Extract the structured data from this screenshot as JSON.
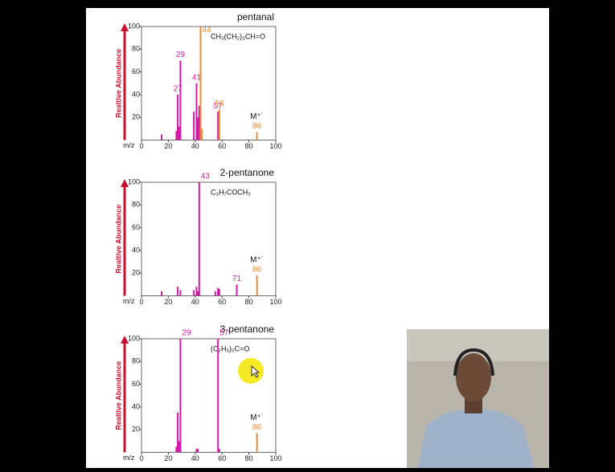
{
  "chart_data": [
    {
      "type": "bar",
      "title": "pentanal",
      "formula": "CH₃(CH₂)₃CH=O",
      "y_label": "Realtive Abundance",
      "x_label": "m/z",
      "ion_label": "M⁺˙",
      "xlim": [
        0,
        100
      ],
      "ylim": [
        0,
        100
      ],
      "xticks": [
        0,
        20,
        40,
        60,
        80,
        100
      ],
      "yticks": [
        20,
        40,
        60,
        80,
        100
      ],
      "series": [
        {
          "color": "#d21aa8",
          "x": [
            15,
            26,
            27,
            28,
            29,
            39,
            41,
            42,
            43,
            57
          ],
          "values": [
            5,
            8,
            40,
            12,
            70,
            25,
            50,
            20,
            30,
            25
          ],
          "labeled": [
            false,
            false,
            true,
            false,
            true,
            false,
            true,
            false,
            false,
            true
          ]
        },
        {
          "color": "#ee8a2e",
          "x": [
            44,
            45,
            58,
            86
          ],
          "values": [
            100,
            10,
            27,
            7
          ],
          "labeled": [
            true,
            false,
            true,
            true
          ]
        }
      ]
    },
    {
      "type": "bar",
      "title": "2-pentanone",
      "formula": "C₃H₇COCH₃",
      "y_label": "Realtive Abundance",
      "x_label": "m/z",
      "ion_label": "M⁺˙",
      "xlim": [
        0,
        100
      ],
      "ylim": [
        0,
        100
      ],
      "xticks": [
        0,
        20,
        40,
        60,
        80,
        100
      ],
      "yticks": [
        20,
        40,
        60,
        80,
        100
      ],
      "series": [
        {
          "color": "#d21aa8",
          "x": [
            15,
            27,
            29,
            39,
            41,
            42,
            43,
            55,
            57,
            58,
            71
          ],
          "values": [
            4,
            8,
            5,
            5,
            8,
            4,
            100,
            4,
            7,
            6,
            10
          ],
          "labeled": [
            false,
            false,
            false,
            false,
            false,
            false,
            true,
            false,
            false,
            false,
            true
          ]
        },
        {
          "color": "#ee8a2e",
          "x": [
            86
          ],
          "values": [
            18
          ],
          "labeled": [
            true
          ]
        }
      ]
    },
    {
      "type": "bar",
      "title": "3-pentanone",
      "formula": "(C₂H₅)₂C=O",
      "y_label": "Realtive Abundance",
      "x_label": "m/z",
      "ion_label": "M⁺˙",
      "xlim": [
        0,
        100
      ],
      "ylim": [
        0,
        100
      ],
      "xticks": [
        0,
        20,
        40,
        60,
        80,
        100
      ],
      "yticks": [
        20,
        40,
        60,
        80,
        100
      ],
      "series": [
        {
          "color": "#d21aa8",
          "x": [
            26,
            27,
            28,
            29,
            41,
            42,
            57,
            58
          ],
          "values": [
            5,
            35,
            10,
            100,
            3,
            3,
            100,
            3
          ],
          "labeled": [
            false,
            false,
            false,
            true,
            false,
            false,
            true,
            false
          ]
        },
        {
          "color": "#ee8a2e",
          "x": [
            86
          ],
          "values": [
            17
          ],
          "labeled": [
            true
          ]
        }
      ]
    }
  ]
}
